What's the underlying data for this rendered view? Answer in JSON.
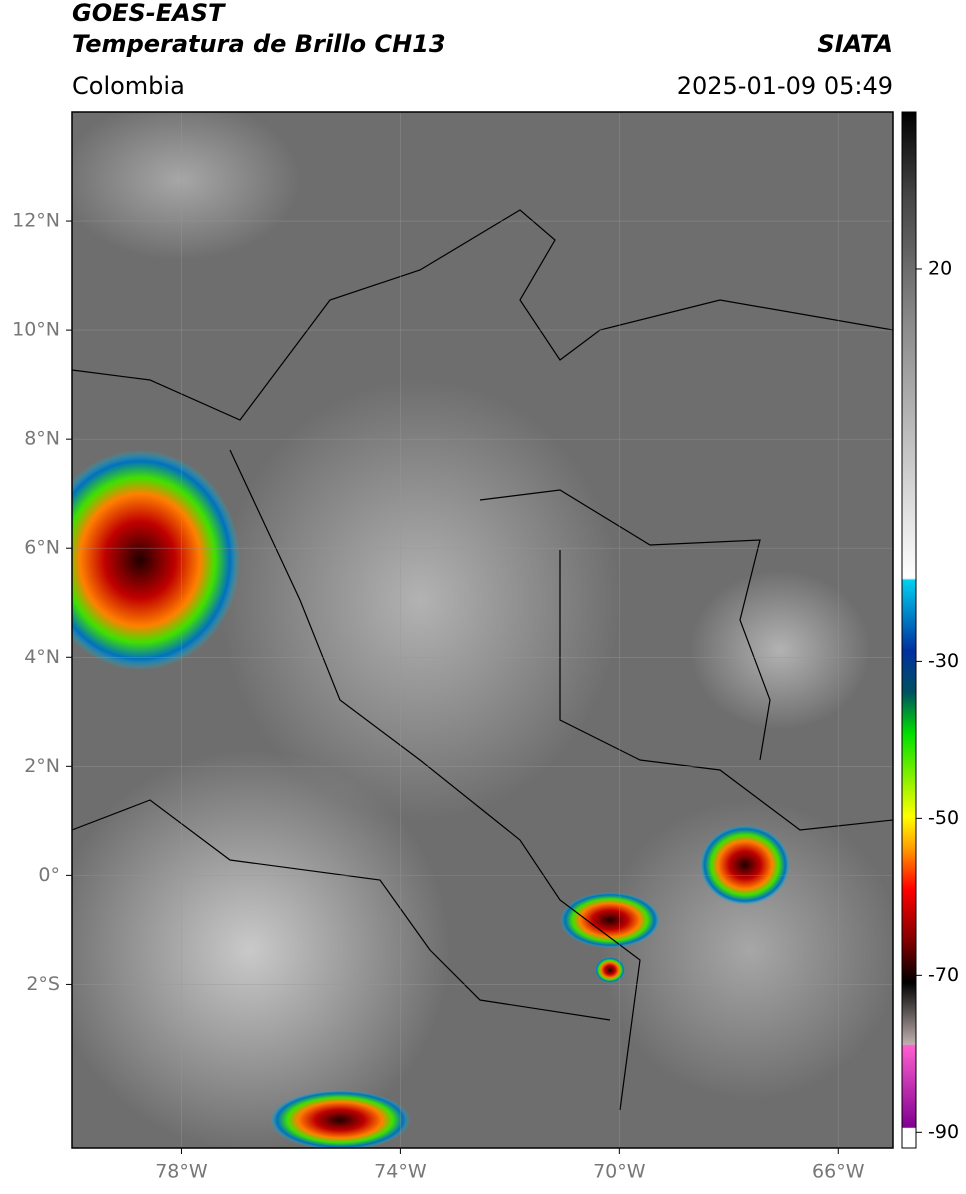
{
  "header": {
    "title": "GOES-EAST",
    "subtitle": "Temperatura de Brillo CH13",
    "source": "SIATA",
    "region": "Colombia",
    "timestamp": "2025-01-09 05:49"
  },
  "map": {
    "lonlim": [
      -80,
      -65
    ],
    "latlim": [
      -5,
      14
    ],
    "lonticks": [
      {
        "value": -78,
        "label": "78°W"
      },
      {
        "value": -74,
        "label": "74°W"
      },
      {
        "value": -70,
        "label": "70°W"
      },
      {
        "value": -66,
        "label": "66°W"
      }
    ],
    "latticks": [
      {
        "value": 12,
        "label": "12°N"
      },
      {
        "value": 10,
        "label": "10°N"
      },
      {
        "value": 8,
        "label": "8°N"
      },
      {
        "value": 6,
        "label": "6°N"
      },
      {
        "value": 4,
        "label": "4°N"
      },
      {
        "value": 2,
        "label": "2°N"
      },
      {
        "value": 0,
        "label": "0°"
      },
      {
        "value": -2,
        "label": "2°S"
      }
    ],
    "grid": true
  },
  "colorbar": {
    "lim": [
      -92,
      40
    ],
    "ticks": [
      20,
      -30,
      -50,
      -70,
      -90
    ]
  }
}
